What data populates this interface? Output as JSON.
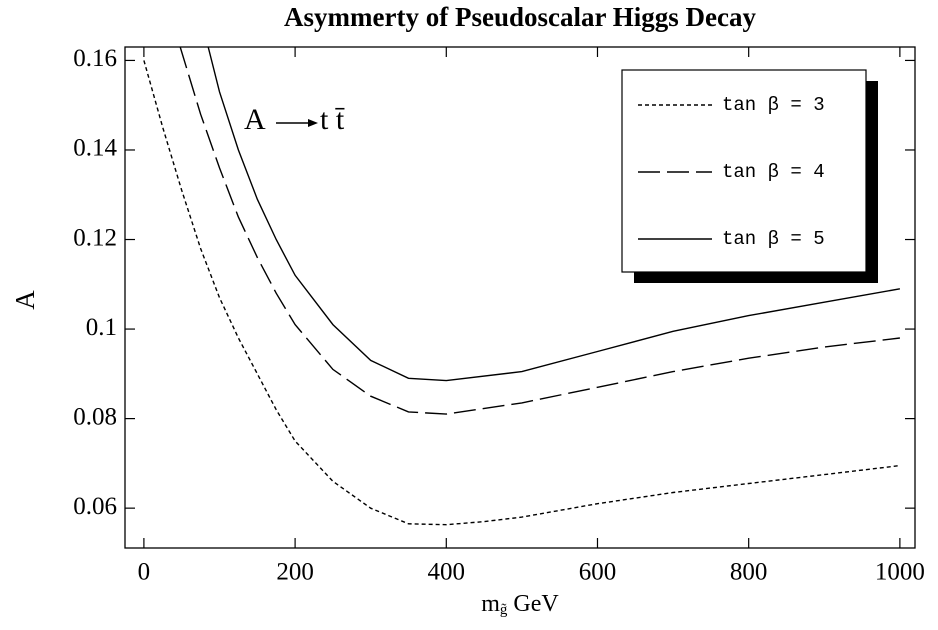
{
  "chart_data": {
    "type": "line",
    "title": "Asymmerty of Pseudoscalar Higgs Decay",
    "x_label": {
      "main": "m",
      "sub": "g̃",
      "unit": "GeV"
    },
    "y_label": "A",
    "annotation": {
      "left": "A",
      "right": "t t̄"
    },
    "xlim": [
      -25,
      1020
    ],
    "xticks": [
      0,
      200,
      400,
      600,
      800,
      1000
    ],
    "ylim": [
      0.0511,
      0.163
    ],
    "yticks": [
      0.06,
      0.08,
      0.1,
      0.12,
      0.14,
      0.16
    ],
    "series": [
      {
        "name": "tan β = 3",
        "color": "#000000",
        "dash": "short",
        "x": [
          0,
          25,
          50,
          75,
          100,
          125,
          150,
          175,
          200,
          250,
          300,
          350,
          400,
          450,
          500,
          600,
          700,
          800,
          900,
          1000
        ],
        "values": [
          0.16,
          0.145,
          0.131,
          0.118,
          0.107,
          0.098,
          0.09,
          0.082,
          0.075,
          0.066,
          0.06,
          0.0565,
          0.0563,
          0.057,
          0.058,
          0.061,
          0.0635,
          0.0655,
          0.0675,
          0.0695
        ]
      },
      {
        "name": "tan β = 4",
        "color": "#000000",
        "dash": "long",
        "x": [
          48,
          75,
          100,
          125,
          150,
          175,
          200,
          250,
          300,
          350,
          400,
          500,
          600,
          700,
          800,
          900,
          1000
        ],
        "values": [
          0.163,
          0.148,
          0.136,
          0.125,
          0.116,
          0.108,
          0.101,
          0.091,
          0.085,
          0.0815,
          0.081,
          0.0835,
          0.087,
          0.0905,
          0.0935,
          0.096,
          0.098
        ]
      },
      {
        "name": "tan β = 5",
        "color": "#000000",
        "dash": "solid",
        "x": [
          85,
          100,
          125,
          150,
          175,
          200,
          250,
          300,
          350,
          400,
          500,
          600,
          700,
          800,
          900,
          1000
        ],
        "values": [
          0.163,
          0.153,
          0.14,
          0.129,
          0.12,
          0.112,
          0.101,
          0.093,
          0.089,
          0.0885,
          0.0905,
          0.095,
          0.0995,
          0.103,
          0.106,
          0.109
        ]
      }
    ]
  }
}
